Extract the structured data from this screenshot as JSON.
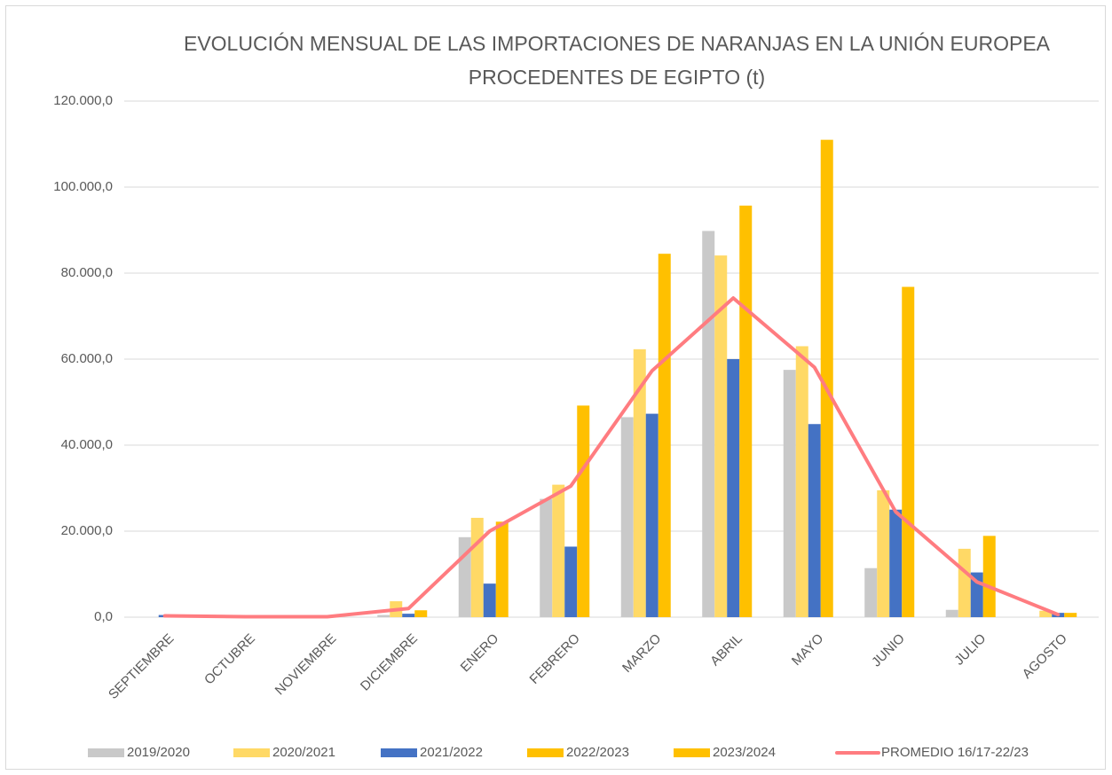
{
  "chart_data": {
    "type": "bar",
    "title": "EVOLUCIÓN MENSUAL DE LAS IMPORTACIONES DE NARANJAS EN LA UNIÓN EUROPEA PROCEDENTES DE EGIPTO (t)",
    "categories": [
      "SEPTIEMBRE",
      "OCTUBRE",
      "NOVIEMBRE",
      "DICIEMBRE",
      "ENERO",
      "FEBRERO",
      "MARZO",
      "ABRIL",
      "MAYO",
      "JUNIO",
      "JULIO",
      "AGOSTO"
    ],
    "series": [
      {
        "name": "2019/2020",
        "type": "bar",
        "color": "#c9c9c9",
        "values": [
          0,
          0,
          0,
          500,
          18600,
          27500,
          46500,
          89800,
          57500,
          11400,
          1700,
          0
        ]
      },
      {
        "name": "2020/2021",
        "type": "bar",
        "color": "#ffd966",
        "values": [
          0,
          0,
          0,
          3700,
          23100,
          30800,
          62300,
          84100,
          63000,
          29500,
          15900,
          1500
        ]
      },
      {
        "name": "2021/2022",
        "type": "bar",
        "color": "#4472c4",
        "values": [
          500,
          0,
          0,
          800,
          7800,
          16400,
          47300,
          60000,
          44900,
          25000,
          10400,
          1000
        ]
      },
      {
        "name": "2022/2023",
        "type": "bar",
        "color": "#ffc000",
        "values": [
          0,
          0,
          0,
          1600,
          22200,
          49200,
          84500,
          95700,
          111000,
          76800,
          18900,
          1000
        ]
      },
      {
        "name": "2023/2024",
        "type": "bar",
        "color": "#ffc000",
        "values": [
          null,
          null,
          null,
          null,
          null,
          null,
          null,
          null,
          null,
          null,
          null,
          null
        ]
      },
      {
        "name": "PROMEDIO 16/17-22/23",
        "type": "line",
        "color": "#ff7c80",
        "values": [
          300,
          100,
          100,
          2000,
          20000,
          30500,
          57300,
          74200,
          58100,
          24500,
          8200,
          600
        ]
      }
    ],
    "ylim": [
      0,
      120000
    ],
    "yticks": [
      {
        "value": 0,
        "label": "0,0"
      },
      {
        "value": 20000,
        "label": "20.000,0"
      },
      {
        "value": 40000,
        "label": "40.000,0"
      },
      {
        "value": 60000,
        "label": "60.000,0"
      },
      {
        "value": 80000,
        "label": "80.000,0"
      },
      {
        "value": 100000,
        "label": "100.000,0"
      },
      {
        "value": 120000,
        "label": "120.000,0"
      }
    ],
    "grid": true,
    "legend": "bottom"
  }
}
